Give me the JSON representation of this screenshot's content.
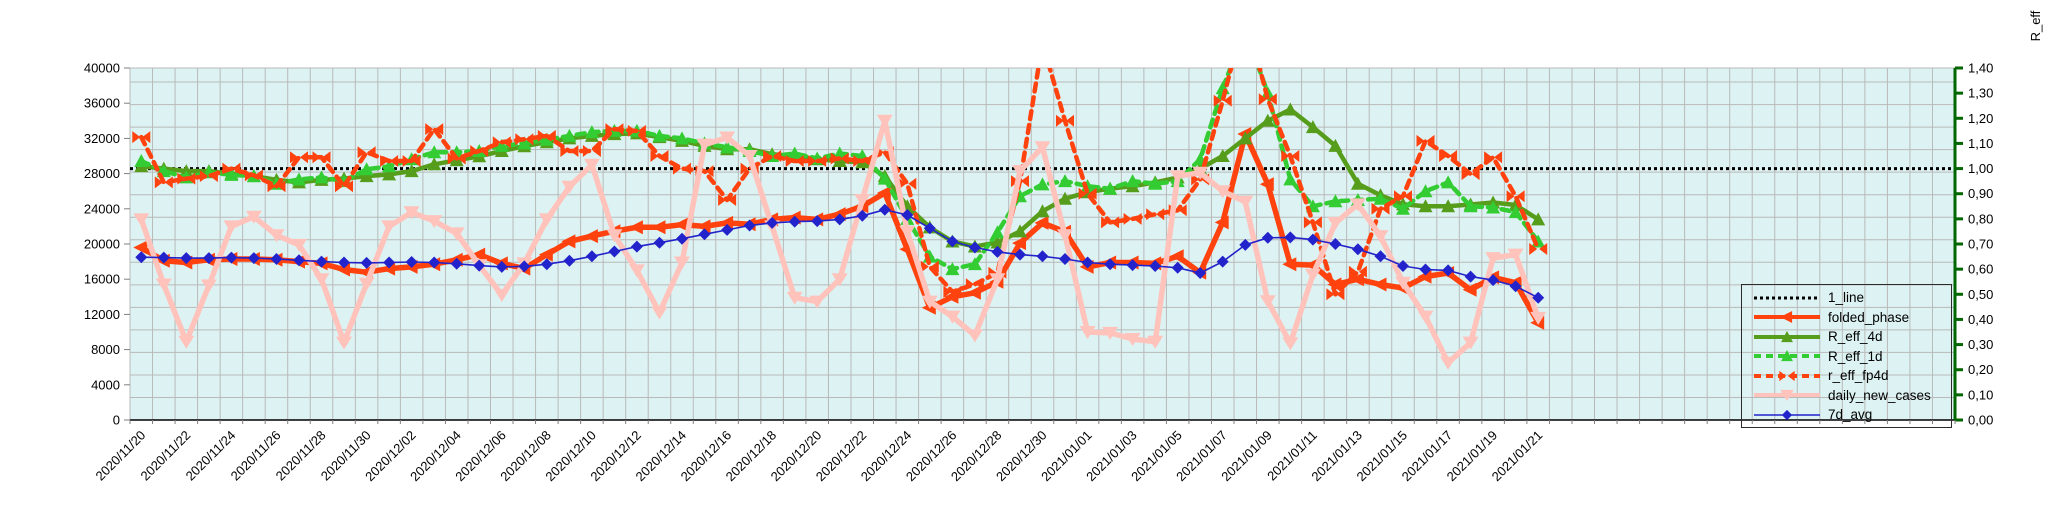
{
  "chart_data": {
    "type": "line",
    "title": "",
    "right_axis": {
      "title": "R_eff",
      "min": 0,
      "max": 1.4,
      "step": 0.1,
      "labels": [
        "0,00",
        "0,10",
        "0,20",
        "0,30",
        "0,40",
        "0,50",
        "0,60",
        "0,70",
        "0,80",
        "0,90",
        "1,00",
        "1,10",
        "1,20",
        "1,30",
        "1,40"
      ],
      "color": "#006600"
    },
    "left_axis": {
      "min": 0,
      "max": 40000,
      "step": 4000,
      "labels": [
        "0",
        "4000",
        "8000",
        "12000",
        "16000",
        "20000",
        "24000",
        "28000",
        "32000",
        "36000",
        "40000"
      ]
    },
    "x_axis": {
      "labels": [
        "2020/11/20",
        "2020/11/22",
        "2020/11/24",
        "2020/11/26",
        "2020/11/28",
        "2020/11/30",
        "2020/12/02",
        "2020/12/04",
        "2020/12/06",
        "2020/12/08",
        "2020/12/10",
        "2020/12/12",
        "2020/12/14",
        "2020/12/16",
        "2020/12/18",
        "2020/12/20",
        "2020/12/22",
        "2020/12/24",
        "2020/12/26",
        "2020/12/28",
        "2020/12/30",
        "2021/01/01",
        "2021/01/03",
        "2021/01/05",
        "2021/01/07",
        "2021/01/09",
        "2021/01/11",
        "2021/01/13",
        "2021/01/15",
        "2021/01/17",
        "2021/01/19",
        "2021/01/21"
      ],
      "label_every_n_days": 2,
      "data_days": 63,
      "total_category_slots": 81
    },
    "plot_background": "#ddf3f3",
    "grid_color": "#b9b9b9",
    "legend_position": "bottom-right-overlay",
    "series": [
      {
        "name": "1_line",
        "axis": "right",
        "color": "#000000",
        "style": "dotted",
        "width": 3,
        "marker": "none",
        "constant": 1.0
      },
      {
        "name": "folded_phase",
        "axis": "left",
        "color": "#ff420e",
        "style": "solid",
        "width": 5.5,
        "marker": "tri-left",
        "values": [
          19600,
          18100,
          17900,
          18200,
          18300,
          18300,
          18200,
          18000,
          17800,
          17100,
          16800,
          17200,
          17400,
          17700,
          18200,
          18800,
          17800,
          17200,
          18800,
          20300,
          20900,
          21450,
          21900,
          21900,
          22200,
          22000,
          22400,
          22250,
          22800,
          23000,
          22800,
          23400,
          24300,
          25800,
          19400,
          12750,
          14000,
          14450,
          15700,
          20100,
          22400,
          21400,
          17400,
          17900,
          17900,
          17800,
          18600,
          16750,
          22450,
          32500,
          26800,
          17700,
          17600,
          15400,
          16000,
          15400,
          15000,
          16300,
          16700,
          14800,
          16200,
          15600,
          11050
        ]
      },
      {
        "name": "R_eff_4d",
        "axis": "right",
        "color": "#579d1c",
        "style": "solid",
        "width": 4.5,
        "marker": "tri-up",
        "values": [
          1.01,
          1.0,
          0.99,
          0.99,
          0.98,
          0.97,
          0.955,
          0.945,
          0.955,
          0.96,
          0.97,
          0.977,
          0.99,
          1.017,
          1.033,
          1.049,
          1.07,
          1.089,
          1.105,
          1.12,
          1.13,
          1.137,
          1.14,
          1.125,
          1.11,
          1.09,
          1.077,
          1.077,
          1.057,
          1.05,
          1.037,
          1.03,
          1.025,
          0.97,
          0.85,
          0.766,
          0.71,
          0.69,
          0.706,
          0.75,
          0.83,
          0.88,
          0.906,
          0.92,
          0.93,
          0.945,
          0.965,
          1.0,
          1.05,
          1.12,
          1.19,
          1.235,
          1.165,
          1.09,
          0.94,
          0.894,
          0.858,
          0.85,
          0.85,
          0.857,
          0.865,
          0.855,
          0.798
        ]
      },
      {
        "name": "R_eff_1d",
        "axis": "right",
        "color": "#33cc33",
        "style": "dashed",
        "width": 4.5,
        "marker": "tri-up",
        "values": [
          1.03,
          0.99,
          0.965,
          0.985,
          0.975,
          0.97,
          0.94,
          0.957,
          0.965,
          0.95,
          0.997,
          1.009,
          1.037,
          1.065,
          1.065,
          1.07,
          1.09,
          1.1,
          1.115,
          1.13,
          1.145,
          1.15,
          1.15,
          1.13,
          1.12,
          1.1,
          1.085,
          1.07,
          1.05,
          1.06,
          1.04,
          1.06,
          1.05,
          0.96,
          0.8,
          0.65,
          0.6,
          0.62,
          0.746,
          0.89,
          0.937,
          0.95,
          0.93,
          0.92,
          0.95,
          0.94,
          0.95,
          1.037,
          1.32,
          1.55,
          1.3,
          0.957,
          0.85,
          0.87,
          0.875,
          0.88,
          0.84,
          0.91,
          0.945,
          0.85,
          0.845,
          0.827,
          0.71
        ]
      },
      {
        "name": "r_eff_fp4d",
        "axis": "right",
        "color": "#ff420e",
        "style": "dashed",
        "width": 4.5,
        "marker": "bowtie",
        "values": [
          1.125,
          0.945,
          0.96,
          0.97,
          1.0,
          0.973,
          0.93,
          1.045,
          1.045,
          0.93,
          1.065,
          1.03,
          1.03,
          1.157,
          1.04,
          1.07,
          1.105,
          1.117,
          1.13,
          1.07,
          1.07,
          1.157,
          1.15,
          1.05,
          1.0,
          0.99,
          0.875,
          1.0,
          1.05,
          1.03,
          1.03,
          1.04,
          1.03,
          1.065,
          0.94,
          0.61,
          0.51,
          0.54,
          0.586,
          0.95,
          1.5,
          1.19,
          0.9,
          0.786,
          0.8,
          0.818,
          0.834,
          0.957,
          1.27,
          1.62,
          1.276,
          1.05,
          0.786,
          0.5,
          0.59,
          0.84,
          0.89,
          1.11,
          1.05,
          0.978,
          1.045,
          0.89,
          0.68
        ]
      },
      {
        "name": "daily_new_cases",
        "axis": "left",
        "color": "#ffc3bc",
        "style": "solid",
        "width": 5.5,
        "marker": "tri-down",
        "values": [
          22800,
          15400,
          8900,
          15300,
          22000,
          23100,
          21000,
          19900,
          16000,
          8800,
          15500,
          22000,
          23600,
          22600,
          21200,
          17600,
          14200,
          17800,
          22800,
          26500,
          29000,
          21000,
          17000,
          12200,
          17900,
          31300,
          32100,
          30000,
          22000,
          13900,
          13450,
          16000,
          25000,
          34000,
          21400,
          13450,
          11750,
          9600,
          16000,
          28300,
          31000,
          21000,
          10000,
          9900,
          9200,
          8900,
          27700,
          28100,
          26000,
          24800,
          13500,
          8700,
          16500,
          22400,
          24500,
          20900,
          15600,
          11750,
          6500,
          8800,
          18400,
          18800,
          11600
        ]
      },
      {
        "name": "7d_avg",
        "axis": "left",
        "color": "#2323cc",
        "style": "solid",
        "width": 1.6,
        "marker": "diamond",
        "values": [
          18500,
          18450,
          18400,
          18400,
          18450,
          18400,
          18300,
          18150,
          18000,
          17900,
          17850,
          17900,
          17950,
          17900,
          17750,
          17550,
          17400,
          17450,
          17700,
          18100,
          18600,
          19150,
          19700,
          20150,
          20600,
          21100,
          21600,
          22100,
          22400,
          22550,
          22600,
          22800,
          23200,
          23900,
          23300,
          21800,
          20300,
          19600,
          19100,
          18800,
          18600,
          18300,
          17900,
          17700,
          17600,
          17500,
          17300,
          16700,
          18000,
          19900,
          20700,
          20750,
          20500,
          20000,
          19400,
          18600,
          17500,
          17100,
          17000,
          16300,
          15900,
          15200,
          13900
        ]
      }
    ]
  },
  "legend": {
    "items": [
      {
        "label": "1_line"
      },
      {
        "label": "folded_phase"
      },
      {
        "label": "R_eff_4d"
      },
      {
        "label": "R_eff_1d"
      },
      {
        "label": "r_eff_fp4d"
      },
      {
        "label": "daily_new_cases"
      },
      {
        "label": "7d_avg"
      }
    ]
  }
}
